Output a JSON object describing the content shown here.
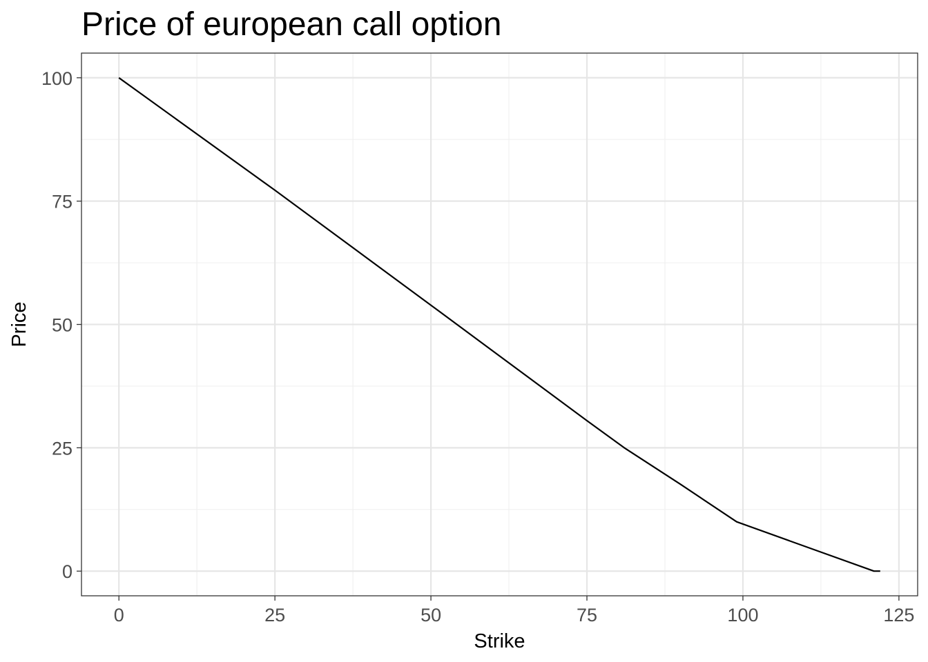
{
  "chart_data": {
    "type": "line",
    "title": "Price of european call option",
    "xlabel": "Strike",
    "ylabel": "Price",
    "xlim": [
      -6,
      128
    ],
    "ylim": [
      -5,
      105
    ],
    "x_ticks": [
      0,
      25,
      50,
      75,
      100,
      125
    ],
    "y_ticks": [
      0,
      25,
      50,
      75,
      100
    ],
    "x_tick_labels": [
      "0",
      "25",
      "50",
      "75",
      "100",
      "125"
    ],
    "y_tick_labels": [
      "0",
      "25",
      "50",
      "75",
      "100"
    ],
    "grid": true,
    "legend": "none",
    "series": [
      {
        "color": "#000000",
        "x": [
          0,
          25,
          50,
          75,
          81,
          90,
          99,
          110,
          121,
          122
        ],
        "y": [
          100,
          77.2,
          53.9,
          30.5,
          25,
          17.6,
          10,
          5,
          0,
          0
        ]
      }
    ]
  }
}
